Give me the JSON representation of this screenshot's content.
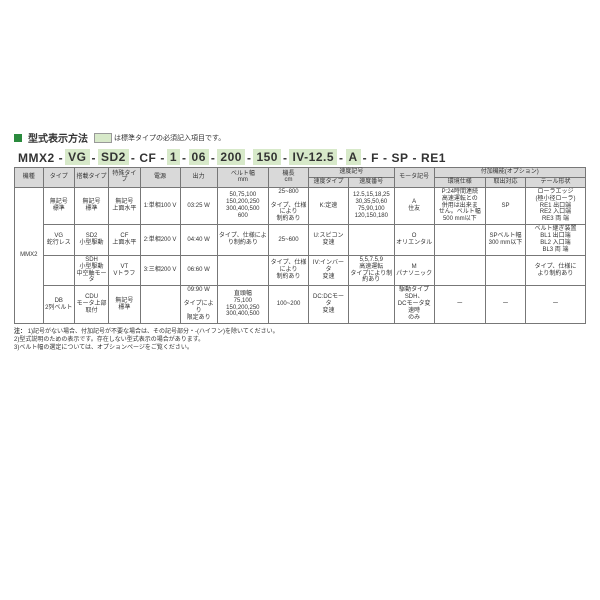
{
  "colors": {
    "accent": "#2a8a3d",
    "std_bg": "#d7e9c9",
    "hdr_bg": "#d9d9d9"
  },
  "title": "型式表示方法",
  "legend": "は標準タイプの必須記入項目です。",
  "model": [
    "MMX2",
    "VG",
    "SD2",
    "CF",
    "1",
    "06",
    "200",
    "150",
    "IV-12.5",
    "A",
    "F",
    "SP",
    "RE1"
  ],
  "model_std": [
    false,
    true,
    true,
    false,
    true,
    true,
    true,
    true,
    true,
    true,
    false,
    false,
    false
  ],
  "hdr1": [
    "機種",
    "タイプ",
    "搭載タイプ",
    "特殊タイプ",
    "電源",
    "出力",
    "ベルト幅\nmm",
    "機長\ncm",
    "速度記号",
    "",
    "モータ記号",
    "付加機能(オプション)",
    "",
    ""
  ],
  "hdr2": [
    "",
    "",
    "",
    "",
    "",
    "",
    "",
    "",
    "速度タイプ",
    "速度番号",
    "",
    "環境仕様",
    "取出対応",
    "テール形状"
  ],
  "rows": [
    [
      "MMX2",
      "無記号\n標準",
      "無記号\n標準",
      "無記号\n上面水平",
      "1:単相100 V",
      "03:25 W",
      "50,75,100\n150,200,250\n300,400,500\n600",
      "25~800\n\nタイプ、仕様\nにより\n制約あり",
      "K:定速",
      "12.5,15,18,25\n30,35,50,60\n75,90,100\n120,150,180",
      "A\n住友",
      "P:24時間連続\n高速運転との\n併用は出来ま\nせん。ベルト幅\n500 mm以下",
      "SP\n",
      "ローラエッジ\n(極小径ローラ)\nRE1 出口端\nRE2 入口端\nRE3 両 端"
    ],
    [
      "",
      "VG\n蛇行レス",
      "SD2\n小型駆動",
      "CF\n上面水平",
      "2:単相200 V",
      "04:40 W",
      "タイプ、仕様によ\nり制約あり",
      "25~600",
      "U:スピコン\n変速",
      "",
      "O\nオリエンタル",
      "",
      "SPベルト幅\n300 mm以下",
      "ベルト継ぎ装置\nBL1 出口端\nBL2 入口端\nBL3 両 端"
    ],
    [
      "",
      "",
      "SDH\n小型駆動\n中空軸モータ",
      "VT\nVトラフ",
      "3:三相200 V",
      "06:60 W",
      "",
      "タイプ、仕様\nにより\n制約あり",
      "IV:インバータ\n変速",
      "5,5,7.5,9\n高速運転\nタイプにより制\n約あり",
      "M\nパナソニック",
      "",
      "",
      "タイプ、仕様に\nより制約あり"
    ],
    [
      "",
      "DB\n2列ベルト",
      "CDU\nモータ上部取付",
      "無記号\n標準",
      "",
      "09:90 W\n\nタイプにより\n限定あり",
      "直頭幅\n75,100\n150,200,250\n300,400,500",
      "100~200",
      "DC:DCモータ\n変速",
      "",
      "駆動タイプSDH、\nDCモータ変速時\nのみ",
      "ー",
      "ー",
      "ー"
    ]
  ],
  "merge": {
    "c0": 4,
    "c4": 1,
    "c5": 1
  },
  "notes_lbl": "注：",
  "notes": [
    "1)記号がない場合、付加記号が不要な場合は、その記号部分・-(ハイフン)を除いてください。",
    "2)型式説明のための表示です。存在しない型式表示の場合があります。",
    "3)ベルト幅の選定については、オプションページをご覧ください。"
  ]
}
